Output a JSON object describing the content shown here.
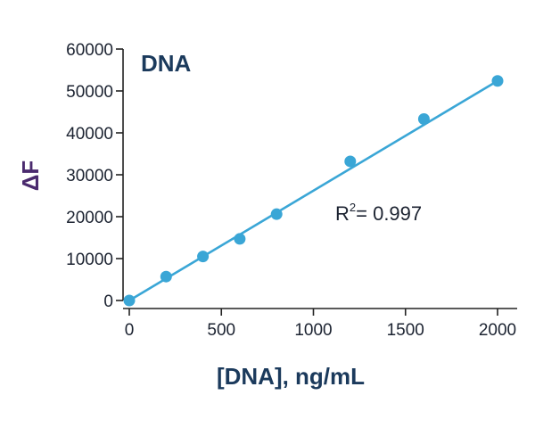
{
  "chart_data": {
    "type": "scatter",
    "title": "DNA",
    "xlabel": "[DNA], ng/mL",
    "ylabel": "ΔF",
    "xlim": [
      0,
      2000
    ],
    "ylim": [
      0,
      60000
    ],
    "x_ticks": [
      "0",
      "500",
      "1000",
      "1500",
      "2000"
    ],
    "y_ticks": [
      "0",
      "10000",
      "20000",
      "30000",
      "40000",
      "50000",
      "60000"
    ],
    "grid": false,
    "series": [
      {
        "x": [
          0,
          200,
          400,
          600,
          800,
          1200,
          1600,
          2000
        ],
        "y": [
          0,
          5700,
          10500,
          14700,
          20600,
          33200,
          43300,
          52400
        ],
        "color": "#3aa6d6"
      }
    ],
    "fit_line": {
      "x": [
        0,
        2000
      ],
      "y": [
        0,
        52400
      ],
      "color": "#3aa6d6"
    },
    "annotation": {
      "text_main": "R",
      "text_sup": "2",
      "text_rest": "= 0.997"
    }
  }
}
